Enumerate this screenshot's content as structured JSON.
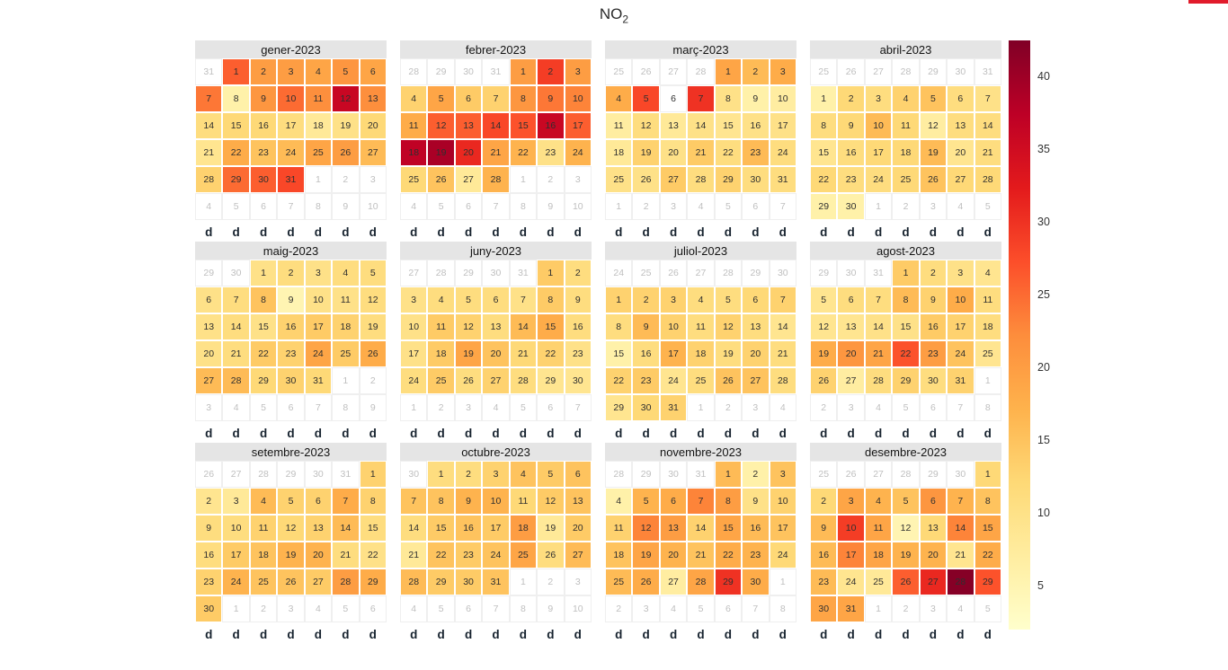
{
  "page": {
    "title_main": "NO",
    "title_sub": "2"
  },
  "accent_strip_color": "#e11b2b",
  "chart_data": {
    "type": "heatmap",
    "title": "NO2",
    "subtitle": "daily calendar heatmap, year 2023, Catalan month names",
    "weekday_label": "d",
    "legend_position": "right",
    "grid": "calendar 4x3 months, 7 columns (Sat..Fri) x 6 rows each",
    "colorscale": {
      "name": "YlOrRd",
      "stops": [
        "#ffffcc",
        "#ffeda0",
        "#fed976",
        "#feb24c",
        "#fd8d3c",
        "#fc4e2a",
        "#e31a1c",
        "#bd0026",
        "#800026"
      ],
      "domain": [
        2,
        42.5
      ]
    },
    "colorbar_ticks": [
      40,
      35,
      30,
      25,
      20,
      15,
      10,
      5
    ],
    "months": [
      {
        "title": "gener-2023",
        "leading": [
          31
        ],
        "values": [
          26,
          20,
          20,
          19,
          21,
          19,
          24,
          6,
          21,
          25,
          22,
          36,
          22,
          11,
          12,
          12,
          11,
          8,
          10,
          12,
          9,
          18,
          15,
          16,
          19,
          20,
          16,
          13,
          25,
          26,
          28
        ]
      },
      {
        "title": "febrer-2023",
        "leading": [
          28,
          29,
          30,
          31
        ],
        "values": [
          20,
          29,
          20,
          13,
          19,
          14,
          13,
          21,
          24,
          23,
          18,
          26,
          26,
          28,
          27,
          36,
          26,
          37,
          39,
          31,
          19,
          17,
          10,
          17,
          12,
          15,
          8,
          17
        ]
      },
      {
        "title": "març-2023",
        "leading": [
          25,
          26,
          27,
          28
        ],
        "values": [
          19,
          16,
          18,
          18,
          28,
          null,
          30,
          10,
          6,
          7,
          7,
          11,
          8,
          10,
          9,
          10,
          10,
          8,
          13,
          10,
          14,
          11,
          16,
          11,
          10,
          10,
          14,
          11,
          13,
          11,
          11
        ]
      },
      {
        "title": "abril-2023",
        "leading": [
          25,
          26,
          27,
          28,
          29,
          30,
          31
        ],
        "values": [
          6,
          12,
          11,
          13,
          15,
          11,
          10,
          11,
          12,
          16,
          12,
          7,
          11,
          11,
          9,
          11,
          12,
          12,
          16,
          9,
          11,
          12,
          11,
          11,
          12,
          15,
          12,
          12,
          6,
          6
        ]
      },
      {
        "title": "maig-2023",
        "leading": [
          29,
          30
        ],
        "values": [
          10,
          11,
          10,
          11,
          11,
          10,
          11,
          15,
          5,
          10,
          10,
          11,
          10,
          11,
          10,
          13,
          14,
          13,
          11,
          10,
          11,
          14,
          13,
          19,
          14,
          18,
          16,
          16,
          12,
          13,
          12
        ]
      },
      {
        "title": "juny-2023",
        "leading": [
          27,
          28,
          29,
          30,
          31
        ],
        "values": [
          14,
          11,
          10,
          11,
          11,
          11,
          10,
          14,
          11,
          10,
          14,
          13,
          11,
          16,
          18,
          11,
          10,
          14,
          19,
          15,
          12,
          13,
          10,
          11,
          14,
          11,
          13,
          11,
          9,
          9
        ]
      },
      {
        "title": "juliol-2023",
        "leading": [
          24,
          25,
          26,
          27,
          28,
          29,
          30
        ],
        "values": [
          13,
          13,
          13,
          11,
          11,
          12,
          13,
          11,
          16,
          13,
          11,
          13,
          11,
          9,
          6,
          11,
          17,
          13,
          11,
          13,
          11,
          13,
          14,
          9,
          11,
          15,
          15,
          11,
          9,
          12,
          13
        ]
      },
      {
        "title": "agost-2023",
        "leading": [
          29,
          30,
          31
        ],
        "values": [
          14,
          11,
          10,
          9,
          9,
          11,
          11,
          16,
          13,
          18,
          11,
          9,
          9,
          10,
          10,
          14,
          13,
          11,
          18,
          21,
          19,
          27,
          20,
          15,
          9,
          13,
          7,
          11,
          13,
          11,
          13
        ]
      },
      {
        "title": "setembre-2023",
        "leading": [
          26,
          27,
          28,
          29,
          30,
          31
        ],
        "values": [
          13,
          9,
          8,
          16,
          13,
          13,
          18,
          13,
          11,
          11,
          13,
          12,
          13,
          16,
          11,
          11,
          14,
          15,
          17,
          17,
          11,
          10,
          13,
          17,
          15,
          15,
          14,
          20,
          18,
          14
        ]
      },
      {
        "title": "octubre-2023",
        "leading": [
          30
        ],
        "values": [
          11,
          11,
          13,
          15,
          14,
          15,
          15,
          15,
          17,
          17,
          12,
          14,
          15,
          11,
          14,
          15,
          14,
          20,
          8,
          14,
          8,
          15,
          14,
          15,
          19,
          11,
          16,
          16,
          14,
          14,
          15
        ]
      },
      {
        "title": "novembre-2023",
        "leading": [
          28,
          29,
          30,
          31
        ],
        "values": [
          16,
          6,
          15,
          6,
          17,
          18,
          23,
          20,
          10,
          13,
          13,
          23,
          20,
          13,
          19,
          16,
          15,
          15,
          19,
          17,
          15,
          18,
          17,
          12,
          16,
          18,
          7,
          19,
          30,
          18
        ]
      },
      {
        "title": "desembre-2023",
        "leading": [
          25,
          26,
          27,
          28,
          29,
          30
        ],
        "values": [
          12,
          12,
          19,
          17,
          15,
          21,
          17,
          15,
          16,
          29,
          19,
          5,
          12,
          23,
          19,
          16,
          23,
          19,
          17,
          17,
          9,
          18,
          16,
          9,
          8,
          26,
          31,
          42,
          27,
          19,
          19
        ]
      }
    ]
  }
}
